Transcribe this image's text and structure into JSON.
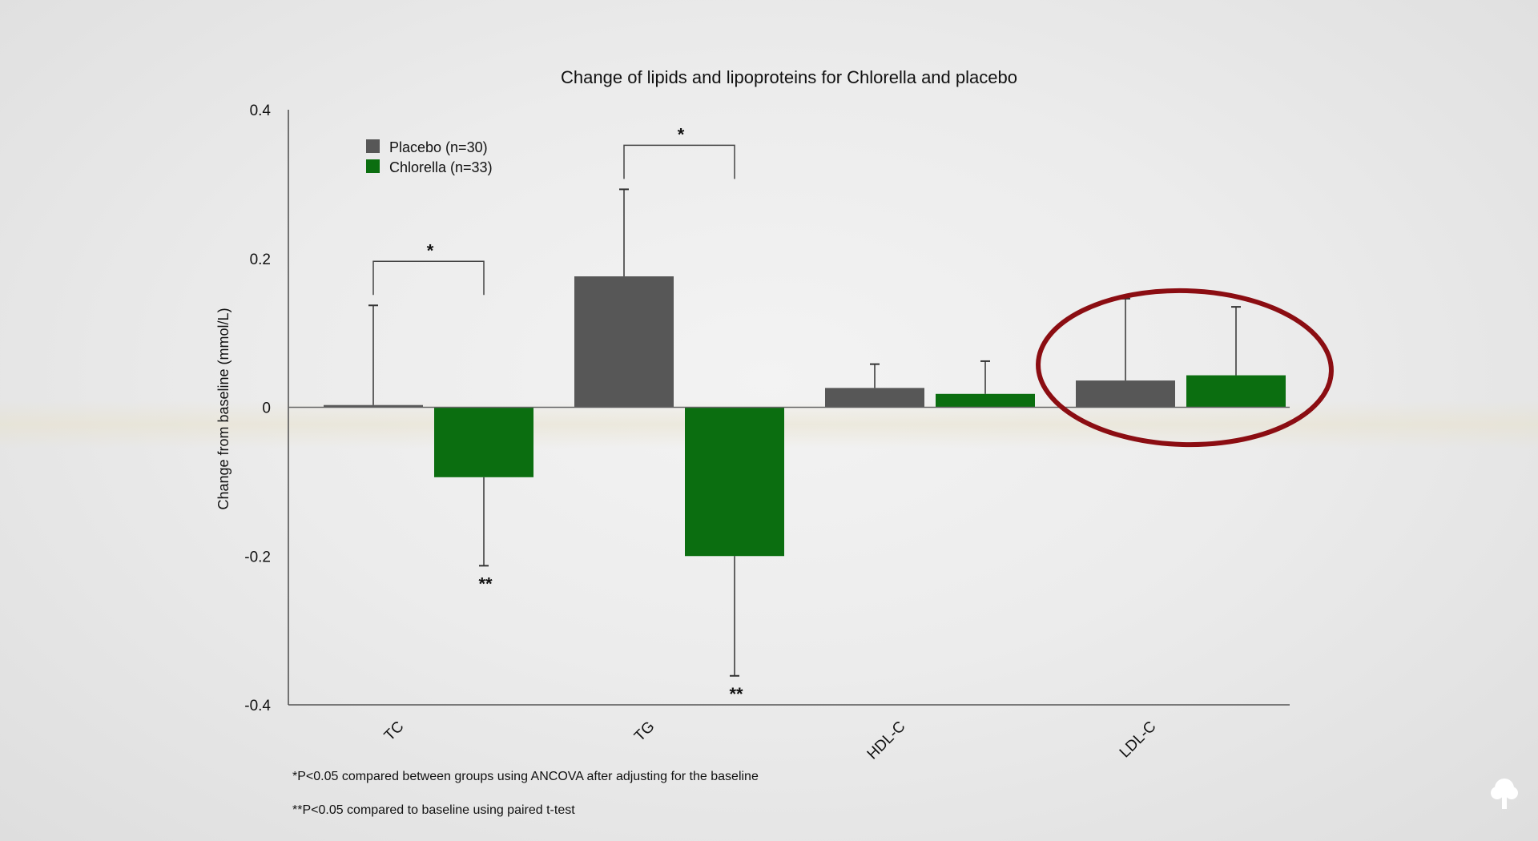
{
  "chart_data": {
    "type": "bar",
    "title": "Change of lipids and lipoproteins for Chlorella and placebo",
    "xlabel": "",
    "ylabel": "Change from baseline (mmol/L)",
    "ylim": [
      -0.4,
      0.4
    ],
    "yticks": [
      {
        "value": 0.4,
        "label": "0.4"
      },
      {
        "value": 0.2,
        "label": "0.2"
      },
      {
        "value": 0,
        "label": "0"
      },
      {
        "value": -0.2,
        "label": "-0.2"
      },
      {
        "value": -0.4,
        "label": "-0.4"
      }
    ],
    "categories": [
      "TC",
      "TG",
      "HDL-C",
      "LDL-C"
    ],
    "series": [
      {
        "name": "Placebo (n=30)",
        "color": "#575757",
        "values": [
          0.003,
          0.176,
          0.026,
          0.036
        ],
        "error_upper": [
          0.137,
          0.293,
          0.058,
          0.146
        ]
      },
      {
        "name": "Chlorella (n=33)",
        "color": "#0b6e10",
        "values": [
          -0.094,
          -0.2,
          0.018,
          0.043
        ],
        "error_lower": [
          -0.213,
          -0.361,
          null,
          null
        ],
        "error_upper": [
          null,
          null,
          0.062,
          0.135
        ]
      }
    ],
    "significance_brackets": [
      {
        "category": "TC",
        "label": "*"
      },
      {
        "category": "TG",
        "label": "*"
      }
    ],
    "baseline_markers": [
      {
        "category": "TC",
        "series": "Chlorella (n=33)",
        "label": "**"
      },
      {
        "category": "TG",
        "series": "Chlorella (n=33)",
        "label": "**"
      }
    ],
    "highlight": {
      "category": "LDL-C",
      "shape": "ellipse",
      "color": "#8b0d12"
    },
    "legend_position": "top-left",
    "grid": false
  },
  "footnotes": [
    "*P<0.05 compared between groups using ANCOVA after adjusting for the baseline",
    "**P<0.05 compared to baseline using paired  t-test"
  ],
  "logo_icon": "tree-icon"
}
